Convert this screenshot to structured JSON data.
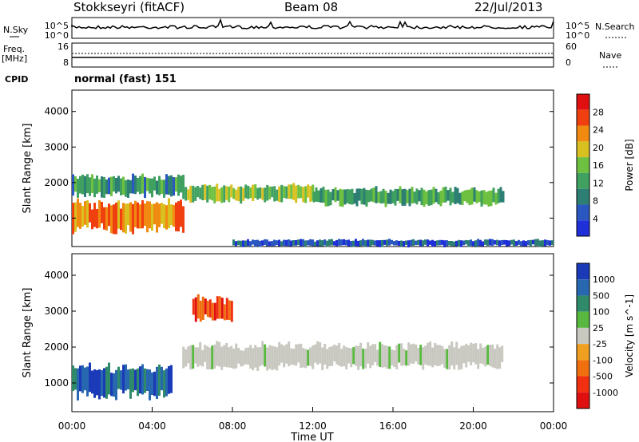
{
  "header": {
    "station": "Stokkseyri (fitACF)",
    "beam": "Beam 08",
    "date": "22/Jul/2013"
  },
  "side_labels": {
    "nsky": "N.Sky",
    "nsearch": "N.Search",
    "freq_line1": "Freq.",
    "freq_line2": "[MHz]",
    "nave": "Nave",
    "cpid": "CPID",
    "cpid_value": "normal (fast) 151"
  },
  "noise_axis": {
    "left_top": "10^5",
    "left_bottom": "10^0",
    "right_top": "10^5",
    "right_bottom": "10^0"
  },
  "freq_axis": {
    "left_ticks": [
      "16",
      "8"
    ],
    "right_ticks": [
      "60",
      "0"
    ]
  },
  "colors": {
    "power": [
      "#2030d8",
      "#2a58c0",
      "#2d7f74",
      "#3fa060",
      "#6ec040",
      "#d8c020",
      "#f08a10",
      "#f04010",
      "#e01010"
    ],
    "velocity": [
      "#1a3ab8",
      "#2868b0",
      "#2f8a6a",
      "#58b840",
      "#c8c8c0",
      "#f0a020",
      "#f07010",
      "#f03010",
      "#e01010"
    ]
  },
  "chart_data": [
    {
      "type": "heatmap",
      "name": "power",
      "xlabel": "",
      "ylabel": "Slant Range [km]",
      "x_ticks": [
        "00:00",
        "04:00",
        "08:00",
        "12:00",
        "16:00",
        "20:00",
        "00:00"
      ],
      "y_ticks": [
        "1000",
        "2000",
        "3000",
        "4000"
      ],
      "ylim": [
        200,
        4600
      ],
      "colorbar": {
        "label": "Power [dB]",
        "ticks": [
          "28",
          "24",
          "20",
          "16",
          "12",
          "8",
          "4"
        ]
      },
      "bands": [
        {
          "t_start": 0.0,
          "t_end": 5.5,
          "r_low": 600,
          "r_high": 1500,
          "value": 24
        },
        {
          "t_start": 0.0,
          "t_end": 5.5,
          "r_low": 1600,
          "r_high": 2200,
          "value": 10
        },
        {
          "t_start": 5.5,
          "t_end": 12.0,
          "r_low": 1450,
          "r_high": 1950,
          "value": 16
        },
        {
          "t_start": 12.0,
          "t_end": 21.5,
          "r_low": 1350,
          "r_high": 1850,
          "value": 12
        },
        {
          "t_start": 8.0,
          "t_end": 24.0,
          "r_low": 200,
          "r_high": 400,
          "value": 4
        }
      ]
    },
    {
      "type": "heatmap",
      "name": "velocity",
      "xlabel": "Time UT",
      "ylabel": "Slant Range [km]",
      "x_ticks": [
        "00:00",
        "04:00",
        "08:00",
        "12:00",
        "16:00",
        "20:00",
        "00:00"
      ],
      "y_ticks": [
        "1000",
        "2000",
        "3000",
        "4000"
      ],
      "ylim": [
        200,
        4600
      ],
      "colorbar": {
        "label": "Velocity [m s^-1]",
        "ticks": [
          "1000",
          "500",
          "100",
          "25",
          "-25",
          "-100",
          "-500",
          "-1000"
        ]
      },
      "bands": [
        {
          "t_start": 0.0,
          "t_end": 5.0,
          "r_low": 600,
          "r_high": 1500,
          "value": 300
        },
        {
          "t_start": 5.5,
          "t_end": 21.5,
          "r_low": 1400,
          "r_high": 2100,
          "value": 0
        },
        {
          "t_start": 6.0,
          "t_end": 8.0,
          "r_low": 2700,
          "r_high": 3400,
          "value": -300
        }
      ]
    }
  ]
}
